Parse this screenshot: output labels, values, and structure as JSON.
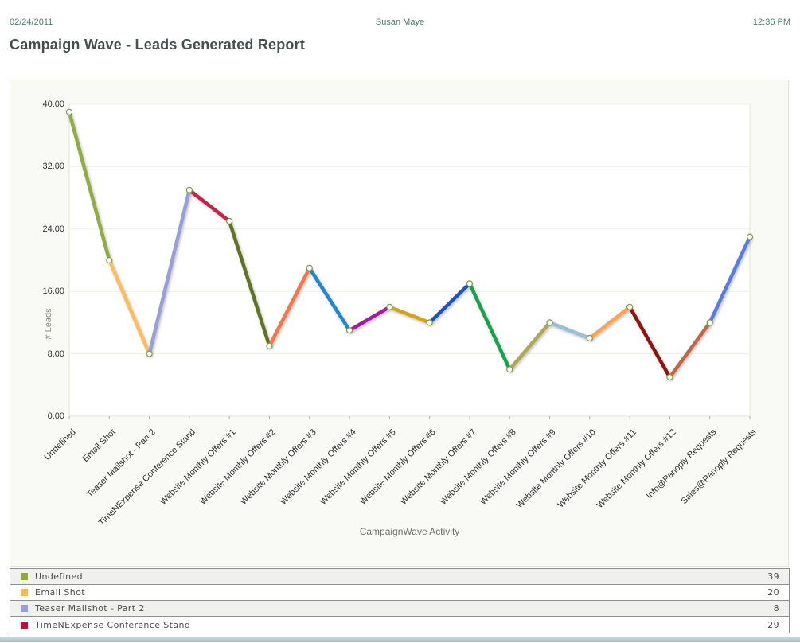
{
  "header": {
    "date": "02/24/2011",
    "user": "Susan Maye",
    "time": "12:36 PM"
  },
  "title": "Campaign Wave - Leads Generated Report",
  "chart_data": {
    "type": "line",
    "title": "",
    "xlabel": "CampaignWave Activity",
    "ylabel": "# Leads",
    "ylim": [
      0,
      40
    ],
    "ytick_step": 8,
    "ytick_labels": [
      "0.00",
      "8.00",
      "16.00",
      "24.00",
      "32.00",
      "40.00"
    ],
    "grid": true,
    "legend_position": "bottom-table",
    "categories": [
      "Undefined",
      "Email Shot",
      "Teaser Mailshot - Part 2",
      "TimeNExpense Conference Stand",
      "Website Monthly Offers #1",
      "Website Monthly Offers #2",
      "Website Monthly Offers #3",
      "Website Monthly Offers #4",
      "Website Monthly Offers #5",
      "Website Monthly Offers #6",
      "Website Monthly Offers #7",
      "Website Monthly Offers #8",
      "Website Monthly Offers #9",
      "Website Monthly Offers #10",
      "Website Monthly Offers #11",
      "Website Monthly Offers #12",
      "Info@Panoply Requests",
      "Sales@Panoply Requests"
    ],
    "values": [
      39,
      20,
      8,
      29,
      25,
      9,
      19,
      11,
      14,
      12,
      17,
      6,
      12,
      10,
      14,
      5,
      12,
      23
    ],
    "segment_colors": [
      "#92ab43",
      "#fcbd5b",
      "#99a0d4",
      "#c72448",
      "#607323",
      "#f0784a",
      "#2186d0",
      "#a21c9d",
      "#d3a515",
      "#1d55b0",
      "#18a34d",
      "#b1a653",
      "#98bfd3",
      "#fca44d",
      "#8c150e",
      "#bf6749",
      "#5c7cdc"
    ],
    "marker": {
      "fill": "#ffffff",
      "stroke": "#7e9c40"
    },
    "plot_colors": {
      "plot_bg": "#ffffff",
      "panel_bg": "#f9f9f6",
      "grid": "#efefe7",
      "plot_border": "#e2e5d4",
      "tick": "#b3b3a3"
    }
  },
  "legend_table": {
    "rows": [
      {
        "label": "Undefined",
        "value": "39",
        "color": "#8fa93d"
      },
      {
        "label": "Email Shot",
        "value": "20",
        "color": "#f8b85b"
      },
      {
        "label": "Teaser Mailshot - Part 2",
        "value": "8",
        "color": "#9aa0d2"
      },
      {
        "label": "TimeNExpense Conference Stand",
        "value": "29",
        "color": "#c0103f"
      }
    ]
  }
}
